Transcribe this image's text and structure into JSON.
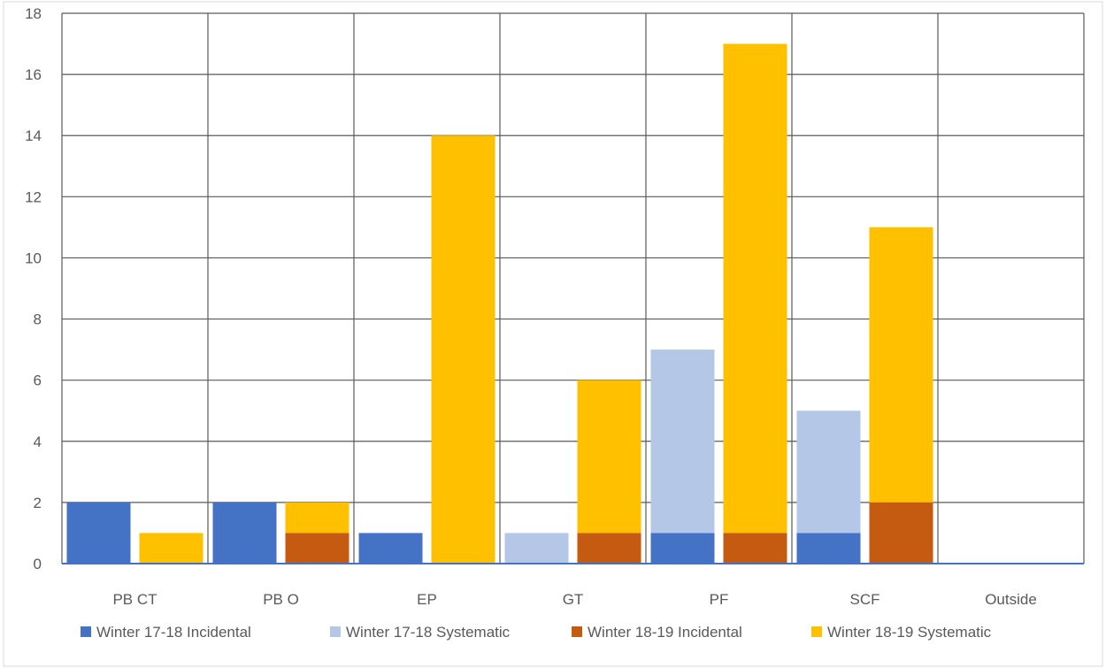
{
  "chart_data": {
    "type": "bar",
    "stacked_groups": true,
    "categories": [
      "PB CT",
      "PB O",
      "EP",
      "GT",
      "PF",
      "SCF",
      "Outside"
    ],
    "ylim": [
      0,
      18
    ],
    "yticks": [
      0,
      2,
      4,
      6,
      8,
      10,
      12,
      14,
      16,
      18
    ],
    "grid": true,
    "legend_position": "bottom",
    "series": [
      {
        "name": "Winter 17-18 Incidental",
        "stack": "Winter 17-18",
        "color": "#4472c4",
        "values": [
          2,
          2,
          1,
          0,
          1,
          1,
          0
        ]
      },
      {
        "name": "Winter 17-18 Systematic",
        "stack": "Winter 17-18",
        "color": "#b4c7e7",
        "values": [
          0,
          0,
          0,
          1,
          6,
          4,
          0
        ]
      },
      {
        "name": "Winter 18-19 Incidental",
        "stack": "Winter 18-19",
        "color": "#c55a11",
        "values": [
          0,
          1,
          0,
          1,
          1,
          2,
          0
        ]
      },
      {
        "name": "Winter 18-19  Systematic",
        "stack": "Winter 18-19",
        "color": "#ffc000",
        "values": [
          1,
          1,
          14,
          5,
          16,
          9,
          0
        ]
      }
    ]
  }
}
